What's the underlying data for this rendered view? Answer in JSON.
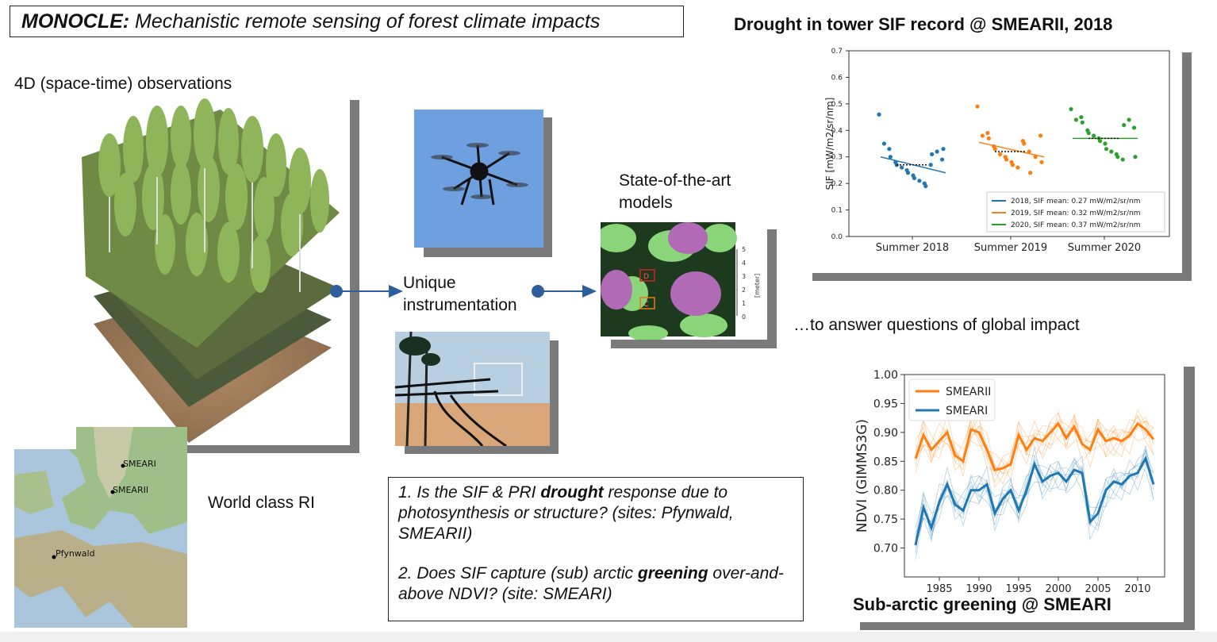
{
  "title": {
    "bold": "MONOCLE:",
    "rest": " Mechanistic remote sensing of forest climate impacts"
  },
  "labels": {
    "observations": "4D (space-time) observations",
    "instrumentation_l1": "Unique",
    "instrumentation_l2": "instrumentation",
    "models_l1": "State-of-the-art",
    "models_l2": "models",
    "world_class": "World class RI",
    "global_impact": "…to answer questions of global impact"
  },
  "map_sites": [
    "SMEARI",
    "SMEARII",
    "Pfynwald"
  ],
  "model_scale": {
    "ticks": [
      "5",
      "4",
      "3",
      "2",
      "1",
      "0"
    ],
    "unit": "[meter]",
    "markers": [
      "D",
      "C"
    ]
  },
  "questions": {
    "q1_pre": "1. Is the SIF & PRI ",
    "q1_bold": "drought",
    "q1_post": " response due to photosynthesis or structure? (sites: Pfynwald, SMEARII)",
    "q2_pre": "2. Does SIF capture (sub) arctic ",
    "q2_bold": "greening",
    "q2_post": " over-and-above NDVI? (site: SMEARI)"
  },
  "chart_titles": {
    "sif": "Drought in tower SIF record @ SMEARII, 2018",
    "ndvi": "Sub-arctic greening @ SMEARI"
  },
  "colors": {
    "c2018": "#1f77b4",
    "c2019": "#ff7f0e",
    "c2020": "#2ca02c",
    "shadow": "#7a7a7a",
    "arrow": "#2e5f9c"
  },
  "chart_data": [
    {
      "type": "scatter",
      "ylabel": "SIF [mW/m2/sr/nm]",
      "ylim": [
        0.0,
        0.7
      ],
      "yticks": [
        "0.0",
        "0.1",
        "0.2",
        "0.3",
        "0.4",
        "0.5",
        "0.6",
        "0.7"
      ],
      "categories": [
        "Summer 2018",
        "Summer 2019",
        "Summer 2020"
      ],
      "legend": [
        "2018, SIF mean: 0.27 mW/m2/sr/nm",
        "2019, SIF mean: 0.32 mW/m2/sr/nm",
        "2020, SIF mean: 0.37 mW/m2/sr/nm"
      ],
      "legend_position": "lower-right",
      "series": [
        {
          "category": "Summer 2018",
          "mean": 0.27,
          "trend": [
            0.3,
            0.24
          ],
          "values": [
            0.46,
            0.35,
            0.33,
            0.3,
            0.28,
            0.27,
            0.26,
            0.25,
            0.24,
            0.23,
            0.22,
            0.21,
            0.2,
            0.19,
            0.27,
            0.31,
            0.32,
            0.29,
            0.33
          ]
        },
        {
          "category": "Summer 2019",
          "mean": 0.32,
          "trend": [
            0.355,
            0.3
          ],
          "values": [
            0.49,
            0.38,
            0.39,
            0.37,
            0.34,
            0.33,
            0.31,
            0.3,
            0.29,
            0.28,
            0.27,
            0.26,
            0.36,
            0.35,
            0.32,
            0.24,
            0.3,
            0.38,
            0.28
          ]
        },
        {
          "category": "Summer 2020",
          "mean": 0.37,
          "trend": [
            0.37,
            0.37
          ],
          "values": [
            0.48,
            0.44,
            0.45,
            0.43,
            0.4,
            0.39,
            0.38,
            0.37,
            0.36,
            0.35,
            0.33,
            0.32,
            0.31,
            0.3,
            0.29,
            0.42,
            0.44,
            0.41,
            0.3
          ]
        }
      ]
    },
    {
      "type": "line",
      "ylabel": "NDVI (GIMMS3G)",
      "ylim": [
        0.65,
        1.0
      ],
      "yticks": [
        "0.70",
        "0.75",
        "0.80",
        "0.85",
        "0.90",
        "0.95",
        "1.00"
      ],
      "xticks": [
        "1985",
        "1990",
        "1995",
        "2000",
        "2005",
        "2010"
      ],
      "x": [
        1982,
        1983,
        1984,
        1985,
        1986,
        1987,
        1988,
        1989,
        1990,
        1991,
        1992,
        1993,
        1994,
        1995,
        1996,
        1997,
        1998,
        1999,
        2000,
        2001,
        2002,
        2003,
        2004,
        2005,
        2006,
        2007,
        2008,
        2009,
        2010,
        2011,
        2012
      ],
      "legend_position": "top-left",
      "series": [
        {
          "name": "SMEARII",
          "color": "#ff7f0e",
          "values": [
            0.855,
            0.895,
            0.87,
            0.885,
            0.9,
            0.86,
            0.85,
            0.905,
            0.9,
            0.87,
            0.835,
            0.838,
            0.845,
            0.895,
            0.87,
            0.89,
            0.885,
            0.9,
            0.915,
            0.89,
            0.91,
            0.88,
            0.87,
            0.905,
            0.885,
            0.89,
            0.885,
            0.895,
            0.915,
            0.905,
            0.888
          ]
        },
        {
          "name": "SMEARI",
          "color": "#1f77b4",
          "values": [
            0.705,
            0.77,
            0.735,
            0.78,
            0.81,
            0.775,
            0.765,
            0.8,
            0.8,
            0.81,
            0.76,
            0.785,
            0.8,
            0.765,
            0.8,
            0.845,
            0.815,
            0.825,
            0.83,
            0.815,
            0.835,
            0.83,
            0.745,
            0.76,
            0.8,
            0.815,
            0.81,
            0.825,
            0.83,
            0.855,
            0.81
          ]
        }
      ]
    }
  ]
}
